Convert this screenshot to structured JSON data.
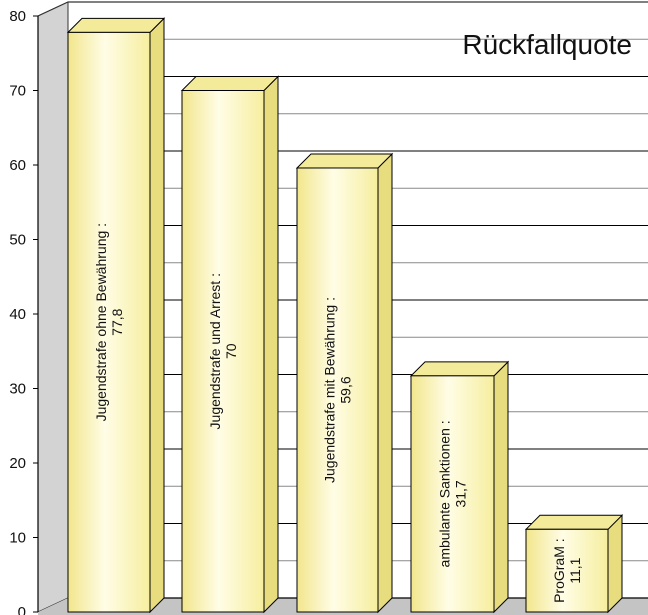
{
  "chart_data": {
    "type": "bar",
    "title": "Rückfallquote",
    "xlabel": "",
    "ylabel": "",
    "ylim": [
      0,
      80
    ],
    "yticks": [
      "0",
      "10",
      "20",
      "30",
      "40",
      "50",
      "60",
      "70",
      "80"
    ],
    "categories": [
      "Jugendstrafe ohne Bewährung :",
      "Jugendstrafe und Arrest :",
      "Jugendstrafe mit Bewährung :",
      "ambulante Sanktionen :",
      "ProGraM :"
    ],
    "values": [
      77.8,
      70,
      59.6,
      31.7,
      11.1
    ],
    "value_labels": [
      "77,8",
      "70",
      "59,6",
      "31,7",
      "11,1"
    ],
    "grid": true,
    "style": "3d",
    "bar_color": "#fbf7c4",
    "bar_top_color": "#f3ea9a",
    "bar_side_color": "#e7dc7e"
  }
}
